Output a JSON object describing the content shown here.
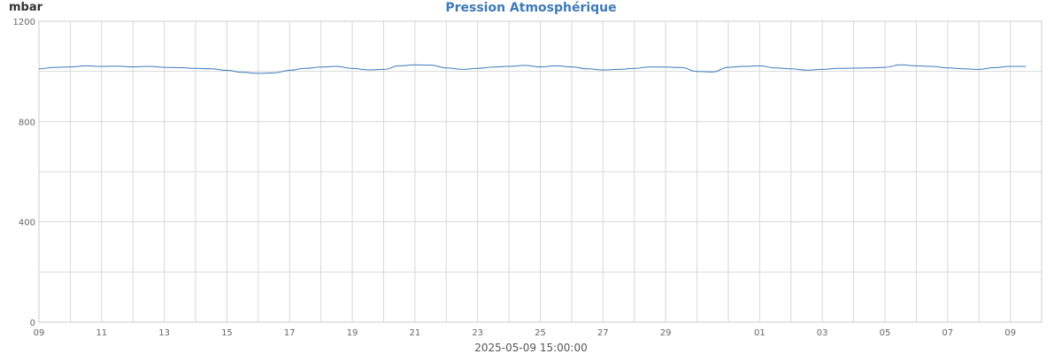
{
  "chart_data": {
    "type": "line",
    "title": "Pression Atmosphérique",
    "ylabel": "mbar",
    "xlabel": "2025-05-09 15:00:00",
    "ylim": [
      0,
      1200
    ],
    "yticks": [
      0,
      400,
      800,
      1200
    ],
    "x_range": [
      "2025-05-09",
      "2025-06-10"
    ],
    "xticks": [
      {
        "date": "2025-05-09",
        "label": "09"
      },
      {
        "date": "2025-05-11",
        "label": "11"
      },
      {
        "date": "2025-05-13",
        "label": "13"
      },
      {
        "date": "2025-05-15",
        "label": "15"
      },
      {
        "date": "2025-05-17",
        "label": "17"
      },
      {
        "date": "2025-05-19",
        "label": "19"
      },
      {
        "date": "2025-05-21",
        "label": "21"
      },
      {
        "date": "2025-05-23",
        "label": "23"
      },
      {
        "date": "2025-05-25",
        "label": "25"
      },
      {
        "date": "2025-05-27",
        "label": "27"
      },
      {
        "date": "2025-05-29",
        "label": "29"
      },
      {
        "date": "2025-06-01",
        "label": "01"
      },
      {
        "date": "2025-06-03",
        "label": "03"
      },
      {
        "date": "2025-06-05",
        "label": "05"
      },
      {
        "date": "2025-06-07",
        "label": "07"
      },
      {
        "date": "2025-06-09",
        "label": "09"
      }
    ],
    "grid": true,
    "series_color": "#3d7ab8",
    "series": [
      {
        "x": [
          "2025-05-09",
          "2025-05-09T12:00",
          "2025-05-10",
          "2025-05-10T12:00",
          "2025-05-11",
          "2025-05-11T12:00",
          "2025-05-12",
          "2025-05-12T12:00",
          "2025-05-13",
          "2025-05-13T12:00",
          "2025-05-14",
          "2025-05-14T12:00",
          "2025-05-15",
          "2025-05-15T12:00",
          "2025-05-16",
          "2025-05-16T12:00",
          "2025-05-17",
          "2025-05-17T12:00",
          "2025-05-18",
          "2025-05-18T12:00",
          "2025-05-19",
          "2025-05-19T12:00",
          "2025-05-20",
          "2025-05-20T12:00",
          "2025-05-21",
          "2025-05-21T12:00",
          "2025-05-22",
          "2025-05-22T12:00",
          "2025-05-23",
          "2025-05-23T12:00",
          "2025-05-24",
          "2025-05-24T12:00",
          "2025-05-25",
          "2025-05-25T12:00",
          "2025-05-26",
          "2025-05-26T12:00",
          "2025-05-27",
          "2025-05-27T12:00",
          "2025-05-28",
          "2025-05-28T12:00",
          "2025-05-29",
          "2025-05-29T12:00",
          "2025-05-30",
          "2025-05-30T12:00",
          "2025-05-31",
          "2025-05-31T12:00",
          "2025-06-01",
          "2025-06-01T12:00",
          "2025-06-02",
          "2025-06-02T12:00",
          "2025-06-03",
          "2025-06-03T12:00",
          "2025-06-04",
          "2025-06-04T12:00",
          "2025-06-05",
          "2025-06-05T12:00",
          "2025-06-06",
          "2025-06-06T12:00",
          "2025-06-07",
          "2025-06-07T12:00",
          "2025-06-08",
          "2025-06-08T12:00",
          "2025-06-09",
          "2025-06-09T12:00"
        ],
        "y": [
          1010,
          1016,
          1018,
          1022,
          1020,
          1021,
          1018,
          1020,
          1016,
          1015,
          1012,
          1010,
          1004,
          996,
          992,
          994,
          1004,
          1012,
          1017,
          1020,
          1012,
          1006,
          1008,
          1022,
          1026,
          1025,
          1014,
          1008,
          1012,
          1017,
          1020,
          1024,
          1018,
          1022,
          1018,
          1010,
          1006,
          1008,
          1012,
          1018,
          1017,
          1015,
          1000,
          998,
          1016,
          1020,
          1022,
          1014,
          1010,
          1005,
          1008,
          1012,
          1013,
          1014,
          1016,
          1026,
          1022,
          1020,
          1014,
          1010,
          1008,
          1015,
          1020,
          1020
        ]
      }
    ]
  }
}
